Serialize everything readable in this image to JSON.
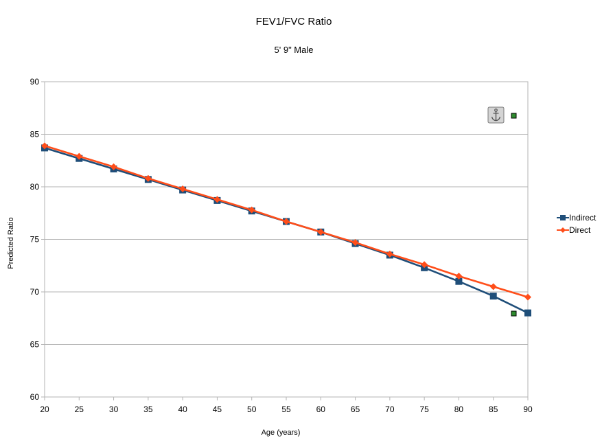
{
  "chart_data": {
    "type": "line",
    "title": "FEV1/FVC Ratio",
    "subtitle": "5' 9\" Male",
    "xlabel": "Age (years)",
    "ylabel": "Predicted Ratio",
    "x": [
      20,
      25,
      30,
      35,
      40,
      45,
      50,
      55,
      60,
      65,
      70,
      75,
      80,
      85,
      90
    ],
    "xlim": [
      20,
      90
    ],
    "ylim": [
      60,
      90
    ],
    "xticks": [
      20,
      25,
      30,
      35,
      40,
      45,
      50,
      55,
      60,
      65,
      70,
      75,
      80,
      85,
      90
    ],
    "yticks": [
      60,
      65,
      70,
      75,
      80,
      85,
      90
    ],
    "grid": "horizontal",
    "legend_position": "right",
    "series": [
      {
        "name": "Indirect",
        "color": "#1f4e79",
        "marker": "square",
        "values": [
          83.7,
          82.7,
          81.7,
          80.7,
          79.7,
          78.7,
          77.7,
          76.7,
          75.7,
          74.6,
          73.5,
          72.3,
          71.0,
          69.6,
          68.0
        ]
      },
      {
        "name": "Direct",
        "color": "#ff4e1a",
        "marker": "diamond",
        "values": [
          83.9,
          82.9,
          81.9,
          80.8,
          79.8,
          78.8,
          77.8,
          76.7,
          75.7,
          74.7,
          73.6,
          72.6,
          71.5,
          70.5,
          69.5
        ]
      }
    ]
  },
  "overlay": {
    "anchor_icon": "anchor-icon",
    "handle_color": "#2e8b2e"
  }
}
